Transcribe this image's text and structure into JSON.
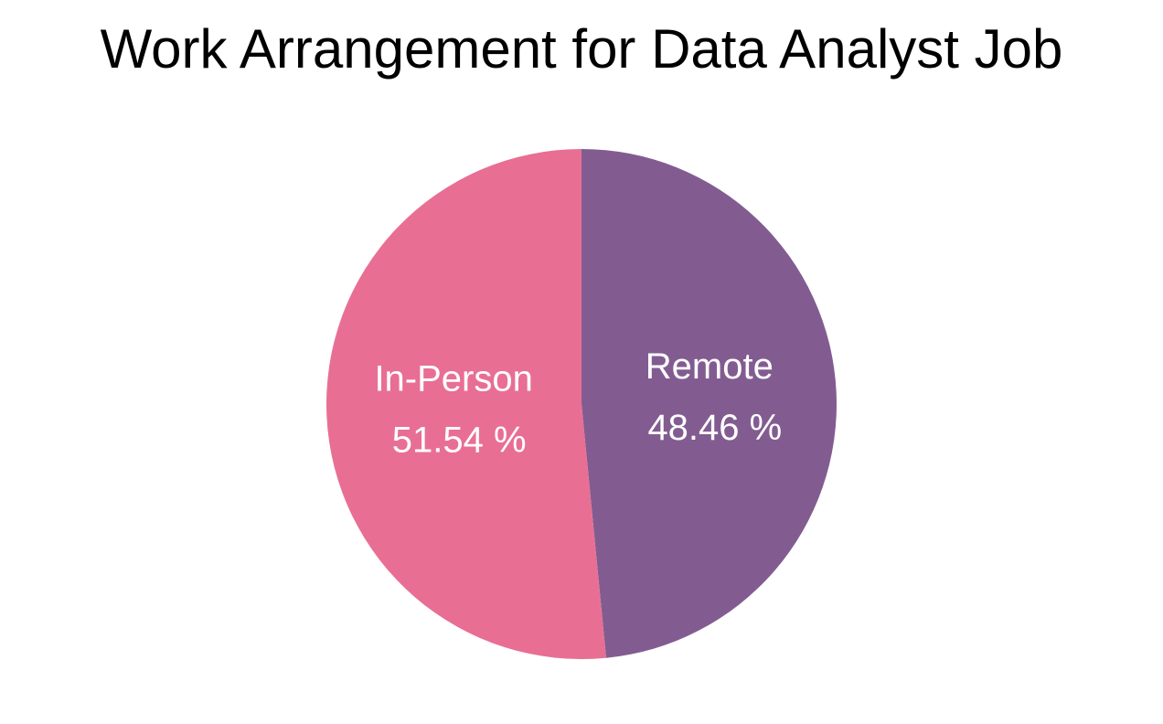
{
  "chart_data": {
    "type": "pie",
    "title": "Work Arrangement for Data Analyst Job",
    "categories": [
      "Remote",
      "In-Person"
    ],
    "values": [
      48.46,
      51.54
    ],
    "value_labels": [
      "48.46 %",
      "51.54 %"
    ],
    "colors": [
      "#825c91",
      "#e86f93"
    ]
  }
}
